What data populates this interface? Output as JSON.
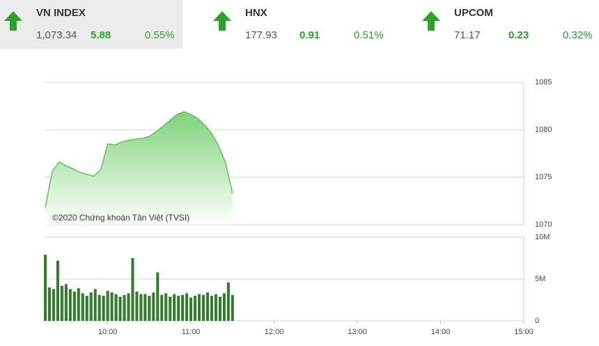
{
  "tickers": [
    {
      "name": "VN INDEX",
      "price": "1,073.34",
      "change": "5.88",
      "percent": "0.55%"
    },
    {
      "name": "HNX",
      "price": "177.93",
      "change": "0.91",
      "percent": "0.51%"
    },
    {
      "name": "UPCOM",
      "price": "71.17",
      "change": "0.23",
      "percent": "0.32%"
    }
  ],
  "chart_data": [
    {
      "type": "area",
      "color": "#5cc45a",
      "annotation": "©2020 Chứng khoán Tân Việt (TVSI)",
      "x": [
        "09:15",
        "09:20",
        "09:25",
        "09:30",
        "09:35",
        "09:40",
        "09:45",
        "09:50",
        "09:55",
        "10:00",
        "10:05",
        "10:10",
        "10:15",
        "10:20",
        "10:25",
        "10:30",
        "10:35",
        "10:40",
        "10:45",
        "10:50",
        "10:55",
        "11:00",
        "11:05",
        "11:10",
        "11:15",
        "11:20",
        "11:25",
        "11:30"
      ],
      "values": [
        1071.8,
        1075.6,
        1076.6,
        1076.2,
        1075.9,
        1075.5,
        1075.3,
        1075.1,
        1075.8,
        1078.5,
        1078.4,
        1078.7,
        1078.9,
        1079.0,
        1079.1,
        1079.3,
        1079.8,
        1080.4,
        1081.0,
        1081.6,
        1081.9,
        1081.6,
        1081.2,
        1080.5,
        1079.6,
        1078.3,
        1076.5,
        1073.3
      ],
      "xlim": [
        "09:15",
        "15:00"
      ],
      "ylim": [
        1070,
        1085
      ],
      "yticks": [
        1070,
        1075,
        1080,
        1085
      ],
      "grid": true
    },
    {
      "type": "bar",
      "color": "#2f7d2a",
      "x": [
        "09:15",
        "09:18",
        "09:21",
        "09:24",
        "09:27",
        "09:30",
        "09:33",
        "09:36",
        "09:39",
        "09:42",
        "09:45",
        "09:48",
        "09:51",
        "09:54",
        "09:57",
        "10:00",
        "10:03",
        "10:06",
        "10:09",
        "10:12",
        "10:15",
        "10:18",
        "10:21",
        "10:24",
        "10:27",
        "10:30",
        "10:33",
        "10:36",
        "10:39",
        "10:42",
        "10:45",
        "10:48",
        "10:51",
        "10:54",
        "10:57",
        "11:00",
        "11:03",
        "11:06",
        "11:09",
        "11:12",
        "11:15",
        "11:18",
        "11:21",
        "11:24",
        "11:27",
        "11:30"
      ],
      "values": [
        7900000,
        4000000,
        3800000,
        7200000,
        4200000,
        4400000,
        3800000,
        3500000,
        3900000,
        3300000,
        3000000,
        3400000,
        3800000,
        3100000,
        3000000,
        3600000,
        3400000,
        3200000,
        2900000,
        3100000,
        3300000,
        7500000,
        3500000,
        3200000,
        3200000,
        3000000,
        3400000,
        5800000,
        3100000,
        3300000,
        2900000,
        3200000,
        3000000,
        3100000,
        3300000,
        2800000,
        3000000,
        3200000,
        3100000,
        3400000,
        3000000,
        3200000,
        2900000,
        3300000,
        4600000,
        3100000
      ],
      "xlim": [
        "09:15",
        "15:00"
      ],
      "xticks": [
        "10:00",
        "11:00",
        "12:00",
        "13:00",
        "14:00",
        "15:00"
      ],
      "ylim": [
        0,
        10000000
      ],
      "yticks": [
        {
          "value": 0,
          "label": "0"
        },
        {
          "value": 5000000,
          "label": "5M"
        },
        {
          "value": 10000000,
          "label": "10M"
        }
      ],
      "grid": true
    }
  ]
}
